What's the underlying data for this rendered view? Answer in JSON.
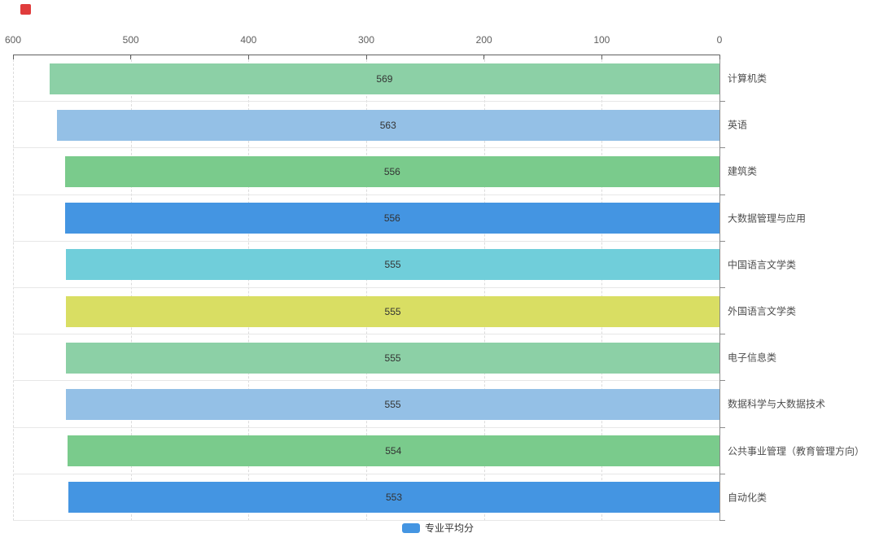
{
  "marker": {
    "color": "#e03c3c"
  },
  "chart_data": {
    "type": "bar",
    "orientation": "horizontal",
    "title": "",
    "xlabel": "",
    "ylabel": "",
    "x_axis": {
      "position": "top",
      "reversed": true,
      "min": 0,
      "max": 600,
      "ticks": [
        "600",
        "500",
        "400",
        "300",
        "200",
        "100",
        "0"
      ],
      "grid": "dashed"
    },
    "categories": [
      "计算机类",
      "英语",
      "建筑类",
      "大数据管理与应用",
      "中国语言文学类",
      "外国语言文学类",
      "电子信息类",
      "数据科学与大数据技术",
      "公共事业管理（教育管理方向）",
      "自动化类"
    ],
    "series": [
      {
        "name": "专业平均分",
        "values": [
          569,
          563,
          556,
          556,
          555,
          555,
          555,
          555,
          554,
          553
        ]
      }
    ],
    "bar_colors": [
      "#8cd0a6",
      "#94c0e6",
      "#7acb8c",
      "#4495e2",
      "#70ceda",
      "#d9de63",
      "#8cd0a6",
      "#94c0e6",
      "#7acb8c",
      "#4495e2"
    ],
    "legend": {
      "label": "专业平均分",
      "swatch_color": "#4495e2",
      "position": "bottom-center"
    }
  }
}
